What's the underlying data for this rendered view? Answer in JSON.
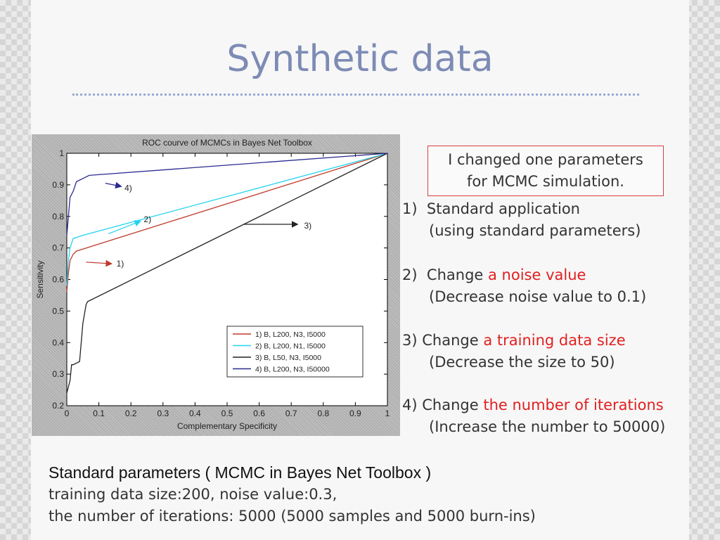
{
  "slide": {
    "title": "Synthetic data",
    "note_lines": [
      "I changed one parameters",
      "for MCMC simulation."
    ],
    "items": [
      {
        "num": "1)",
        "prefix": "Standard application",
        "highlight": "",
        "detail": "(using standard parameters)"
      },
      {
        "num": "2)",
        "prefix": "Change",
        "highlight": "a noise value",
        "detail": "(Decrease noise value to 0.1)"
      },
      {
        "num": "3)",
        "prefix": "Change",
        "highlight": "a training data size",
        "detail": "(Decrease the size to 50)"
      },
      {
        "num": "4)",
        "prefix": "Change",
        "highlight": "the number of iterations",
        "detail": "(Increase the number to 50000)"
      }
    ],
    "footer": {
      "heading": "Standard parameters ( MCMC in Bayes Net Toolbox )",
      "line1": "training data size:200, noise value:0.3,",
      "line2": "the number of iterations: 5000 (5000 samples and 5000 burn-ins)"
    },
    "colors": {
      "title": "#7d8bb5",
      "highlight": "#e21f1f",
      "note_border": "#d94040"
    }
  },
  "chart_data": {
    "type": "line",
    "title": "ROC courve of MCMCs in Bayes Net Toolbox",
    "xlabel": "Complementary Specificity",
    "ylabel": "Sensitivity",
    "xlim": [
      0,
      1
    ],
    "ylim": [
      0.2,
      1
    ],
    "xticks": [
      "0",
      "0.1",
      "0.2",
      "0.3",
      "0.4",
      "0.5",
      "0.6",
      "0.7",
      "0.8",
      "0.9",
      "1"
    ],
    "yticks": [
      "0.2",
      "0.3",
      "0.4",
      "0.5",
      "0.6",
      "0.7",
      "0.8",
      "0.9",
      "1"
    ],
    "grid": false,
    "legend_position": "bottom-right",
    "series": [
      {
        "name": "1) B, L200, N3,   I5000",
        "color": "#c0392b",
        "x": [
          0,
          0.005,
          0.01,
          0.02,
          0.03,
          1
        ],
        "y": [
          0.56,
          0.62,
          0.66,
          0.68,
          0.69,
          1
        ]
      },
      {
        "name": "2) B, L200, N1,   I5000",
        "color": "#22d3ee",
        "x": [
          0,
          0.005,
          0.01,
          0.02,
          0.05,
          1
        ],
        "y": [
          0.58,
          0.66,
          0.7,
          0.73,
          0.74,
          1
        ]
      },
      {
        "name": "3) B,   L50, N3,  I5000",
        "color": "#222222",
        "x": [
          0,
          0.01,
          0.015,
          0.02,
          0.04,
          0.05,
          0.06,
          0.065,
          1
        ],
        "y": [
          0.24,
          0.28,
          0.33,
          0.33,
          0.34,
          0.46,
          0.52,
          0.53,
          1
        ]
      },
      {
        "name": "4) B, L200, N3, I50000",
        "color": "#2a2a8f",
        "x": [
          0,
          0.005,
          0.01,
          0.02,
          0.03,
          0.05,
          0.07,
          1
        ],
        "y": [
          0.74,
          0.8,
          0.86,
          0.88,
          0.91,
          0.92,
          0.93,
          1
        ]
      }
    ],
    "annotations": [
      {
        "text": "1)",
        "color": "#c0392b"
      },
      {
        "text": "2)",
        "color": "#22d3ee"
      },
      {
        "text": "3)",
        "color": "#222222"
      },
      {
        "text": "4)",
        "color": "#2a2a8f"
      }
    ]
  }
}
